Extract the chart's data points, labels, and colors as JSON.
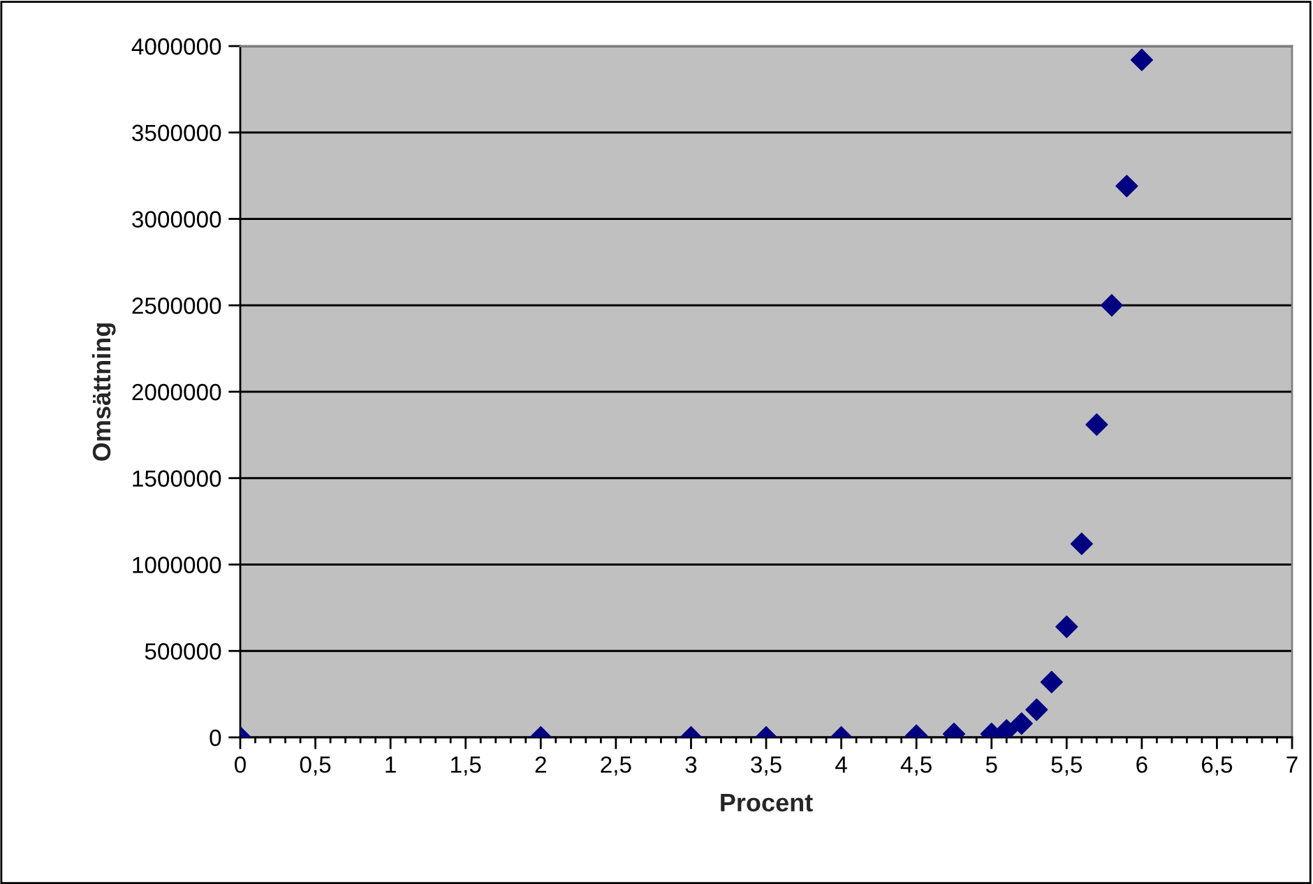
{
  "chart_data": {
    "type": "scatter",
    "xlabel": "Procent",
    "ylabel": "Omsättning",
    "x": [
      0,
      2,
      3,
      3.5,
      4,
      4.5,
      4.75,
      5,
      5.1,
      5.2,
      5.3,
      5.4,
      5.5,
      5.6,
      5.7,
      5.8,
      5.9,
      6
    ],
    "series": [
      {
        "color": "#000080",
        "values": [
          0,
          0,
          0,
          0,
          0,
          10000,
          20000,
          20000,
          40000,
          80000,
          160000,
          320000,
          640000,
          1120000,
          1810000,
          2500000,
          3190000,
          3920000
        ]
      }
    ],
    "marker": "diamond",
    "xlim": [
      0,
      7
    ],
    "ylim": [
      0,
      4000000
    ],
    "xticks": [
      0,
      {
        "value": 0.5,
        "label": "0,5"
      },
      1,
      {
        "value": 1.5,
        "label": "1,5"
      },
      2,
      {
        "value": 2.5,
        "label": "2,5"
      },
      3,
      {
        "value": 3.5,
        "label": "3,5"
      },
      4,
      {
        "value": 4.5,
        "label": "4,5"
      },
      5,
      {
        "value": 5.5,
        "label": "5,5"
      },
      6,
      {
        "value": 6.5,
        "label": "6,5"
      },
      7
    ],
    "yticks": [
      0,
      500000,
      1000000,
      1500000,
      2000000,
      2500000,
      3000000,
      3500000,
      4000000
    ],
    "grid": "y",
    "legend": false
  }
}
